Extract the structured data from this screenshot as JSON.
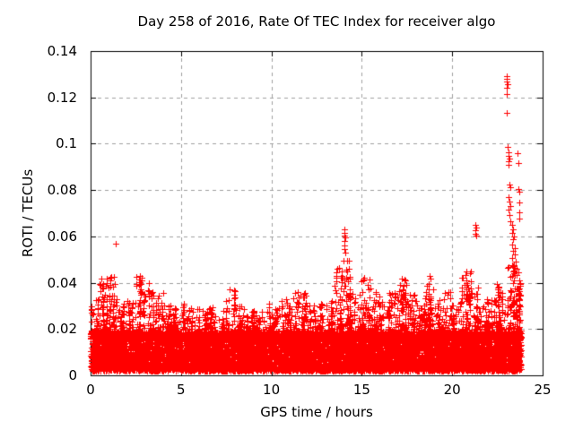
{
  "page": {
    "background": "#ffffff",
    "text_color": "#000000"
  },
  "chart_data": {
    "type": "scatter",
    "title": "Day 258 of 2016, Rate Of TEC Index for receiver algo",
    "xlabel": "GPS time / hours",
    "ylabel": "ROTI / TECUs",
    "xlim": [
      0,
      25
    ],
    "ylim": [
      0,
      0.14
    ],
    "xticks": [
      0,
      5,
      10,
      15,
      20,
      25
    ],
    "xtick_labels": [
      "0",
      "5",
      "10",
      "15",
      "20",
      "25"
    ],
    "yticks": [
      0,
      0.02,
      0.04,
      0.06,
      0.08,
      0.1,
      0.12,
      0.14
    ],
    "ytick_labels": [
      "0",
      "0.02",
      "0.04",
      "0.06",
      "0.08",
      "0.1",
      "0.12",
      "0.14"
    ],
    "legend": "none",
    "grid": {
      "style": "dashed",
      "color": "#a0a0a0"
    },
    "axis_color": "#000000",
    "marker": {
      "shape": "plus",
      "color": "#ff0000",
      "size": 7
    },
    "series_name": "ROTI",
    "band": {
      "description": "dense noise band of ROTI values covering all hours",
      "x_start": 0.0,
      "x_end": 23.8,
      "y_floor": 0.002,
      "core_top": 0.019,
      "bin_width": 0.5,
      "envelope_max": [
        0.033,
        0.042,
        0.043,
        0.031,
        0.033,
        0.043,
        0.04,
        0.036,
        0.031,
        0.029,
        0.031,
        0.03,
        0.028,
        0.03,
        0.029,
        0.037,
        0.03,
        0.028,
        0.029,
        0.031,
        0.029,
        0.033,
        0.036,
        0.038,
        0.031,
        0.031,
        0.033,
        0.048,
        0.05,
        0.035,
        0.042,
        0.036,
        0.032,
        0.036,
        0.042,
        0.035,
        0.033,
        0.043,
        0.033,
        0.036,
        0.032,
        0.045,
        0.038,
        0.034,
        0.033,
        0.041,
        0.048,
        0.045
      ]
    },
    "outliers": [
      [
        1.38,
        0.057
      ],
      [
        14.02,
        0.063
      ],
      [
        14.05,
        0.0615
      ],
      [
        14.03,
        0.0605
      ],
      [
        14.08,
        0.0595
      ],
      [
        14.02,
        0.058
      ],
      [
        14.06,
        0.056
      ],
      [
        14.04,
        0.0545
      ],
      [
        14.09,
        0.053
      ],
      [
        15.45,
        0.0415
      ],
      [
        21.28,
        0.065
      ],
      [
        21.32,
        0.0638
      ],
      [
        21.3,
        0.0625
      ],
      [
        21.26,
        0.0612
      ],
      [
        21.34,
        0.0602
      ],
      [
        21.42,
        0.038
      ],
      [
        23.0,
        0.129
      ],
      [
        23.03,
        0.128
      ],
      [
        23.0,
        0.1268
      ],
      [
        23.05,
        0.1256
      ],
      [
        23.02,
        0.1243
      ],
      [
        23.03,
        0.1215
      ],
      [
        23.04,
        0.1135
      ],
      [
        23.08,
        0.0985
      ],
      [
        23.12,
        0.0962
      ],
      [
        23.1,
        0.0948
      ],
      [
        23.14,
        0.0936
      ],
      [
        23.1,
        0.0925
      ],
      [
        23.13,
        0.0908
      ],
      [
        23.62,
        0.096
      ],
      [
        23.65,
        0.0918
      ],
      [
        23.15,
        0.0825
      ],
      [
        23.2,
        0.0812
      ],
      [
        23.68,
        0.0806
      ],
      [
        23.72,
        0.0792
      ],
      [
        23.1,
        0.0768
      ],
      [
        23.16,
        0.0752
      ],
      [
        23.7,
        0.0745
      ],
      [
        23.21,
        0.073
      ],
      [
        23.12,
        0.0716
      ],
      [
        23.73,
        0.0705
      ],
      [
        23.17,
        0.0692
      ],
      [
        23.69,
        0.0676
      ],
      [
        23.22,
        0.0665
      ],
      [
        23.3,
        0.0648
      ],
      [
        23.36,
        0.0632
      ],
      [
        23.32,
        0.0616
      ],
      [
        23.42,
        0.0601
      ],
      [
        23.35,
        0.0586
      ],
      [
        23.31,
        0.0566
      ],
      [
        23.44,
        0.055
      ],
      [
        23.37,
        0.0536
      ],
      [
        23.46,
        0.0521
      ],
      [
        23.32,
        0.0506
      ],
      [
        23.5,
        0.0492
      ],
      [
        23.41,
        0.0477
      ],
      [
        23.55,
        0.0462
      ],
      [
        23.36,
        0.0449
      ]
    ],
    "render": {
      "seed": 2016258,
      "core_points": 9000,
      "tail_points_per_bin": 55,
      "extra_tail_when_env_gt": 0.04,
      "extra_tail_points": 30
    }
  }
}
